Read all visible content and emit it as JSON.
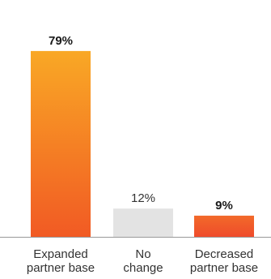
{
  "chart_data": {
    "type": "bar",
    "categories": [
      [
        "Expanded",
        "partner base"
      ],
      [
        "No",
        "change"
      ],
      [
        "Decreased",
        "partner base"
      ]
    ],
    "values": [
      79,
      12,
      9
    ],
    "value_labels": [
      "79%",
      "12%",
      "9%"
    ],
    "value_label_bold": [
      true,
      false,
      true
    ],
    "bar_styles": [
      "orange-gradient",
      "gray",
      "red-orange-gradient"
    ],
    "ylim": [
      0,
      100
    ],
    "grid": false,
    "legend": "none"
  },
  "colors": {
    "orange_top": "#f9a825",
    "orange_bottom": "#f15a24",
    "gray": "#e3e3e3",
    "red_top": "#f26a2a",
    "red_bottom": "#ef4b2b",
    "axis": "#999999",
    "text": "#1a1a1a"
  }
}
